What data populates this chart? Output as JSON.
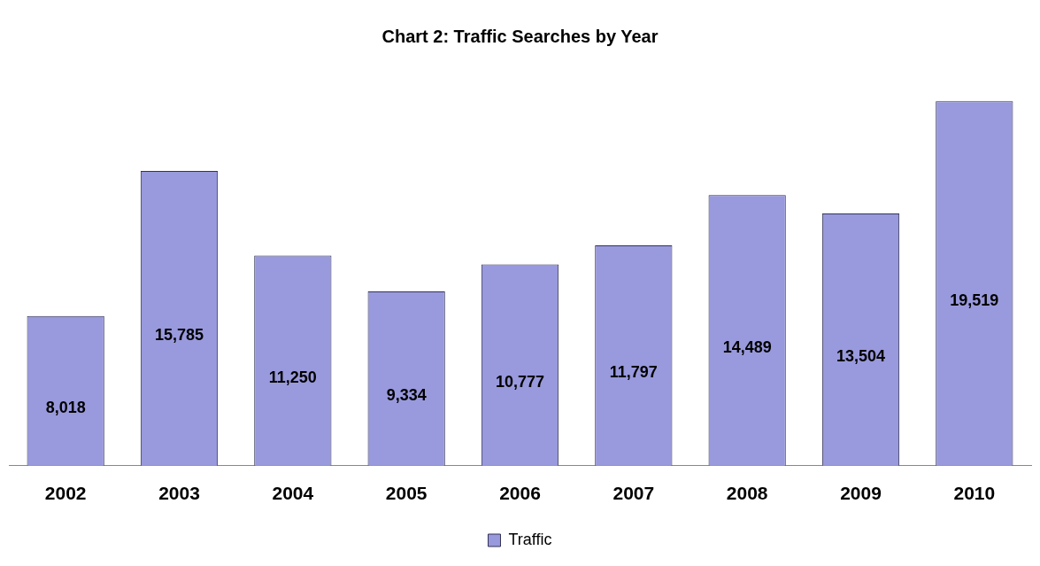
{
  "chart_data": {
    "type": "bar",
    "title": "Chart 2: Traffic Searches by Year",
    "categories": [
      "2002",
      "2003",
      "2004",
      "2005",
      "2006",
      "2007",
      "2008",
      "2009",
      "2010"
    ],
    "series": [
      {
        "name": "Traffic",
        "color": "#9999dd",
        "values": [
          8018,
          15785,
          11250,
          9334,
          10777,
          11797,
          14489,
          13504,
          19519
        ],
        "value_labels": [
          "8,018",
          "15,785",
          "11,250",
          "9,334",
          "10,777",
          "11,797",
          "14,489",
          "13,504",
          "19,519"
        ]
      }
    ],
    "grid": false,
    "legend": "bottom"
  }
}
